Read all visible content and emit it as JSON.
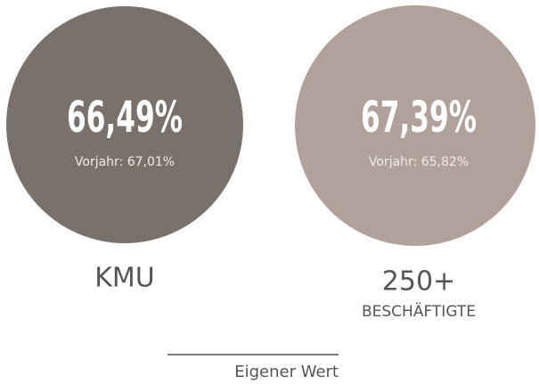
{
  "items": [
    {
      "value": "66,49%",
      "previous": "Vorjahr: 67,01%",
      "label": "KMU"
    },
    {
      "value": "67,39%",
      "previous": "Vorjahr: 65,82%",
      "label": "250+",
      "sublabel": "BESCHÄFTIGTE"
    }
  ],
  "legend": "Eigener Wert"
}
